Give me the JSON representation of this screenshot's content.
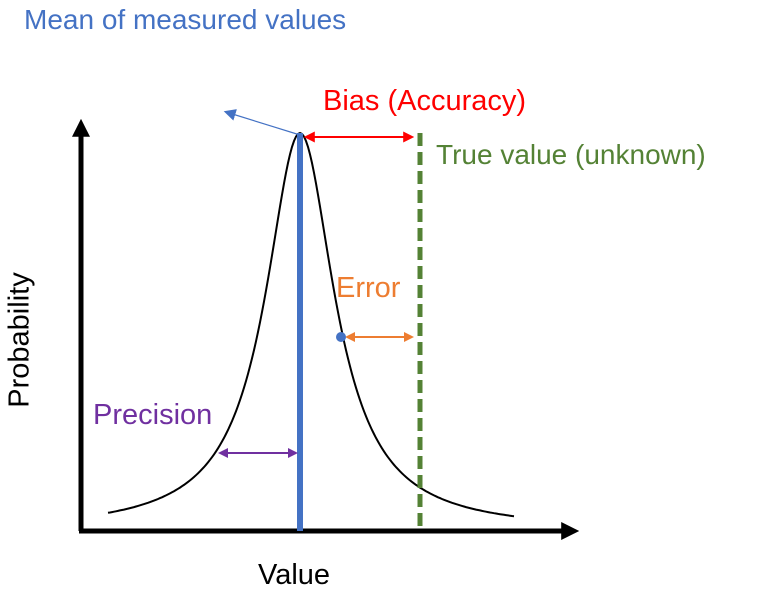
{
  "labels": {
    "mean": "Mean of measured values",
    "bias": "Bias (Accuracy)",
    "true_value": "True value (unknown)",
    "error": "Error",
    "precision": "Precision",
    "x_axis": "Value",
    "y_axis": "Probability"
  },
  "colors": {
    "mean": "#4472c4",
    "bias": "#ff0000",
    "true_value": "#548235",
    "error": "#ed7d31",
    "precision": "#7030a0",
    "curve": "#000000",
    "axes": "#000000"
  }
}
